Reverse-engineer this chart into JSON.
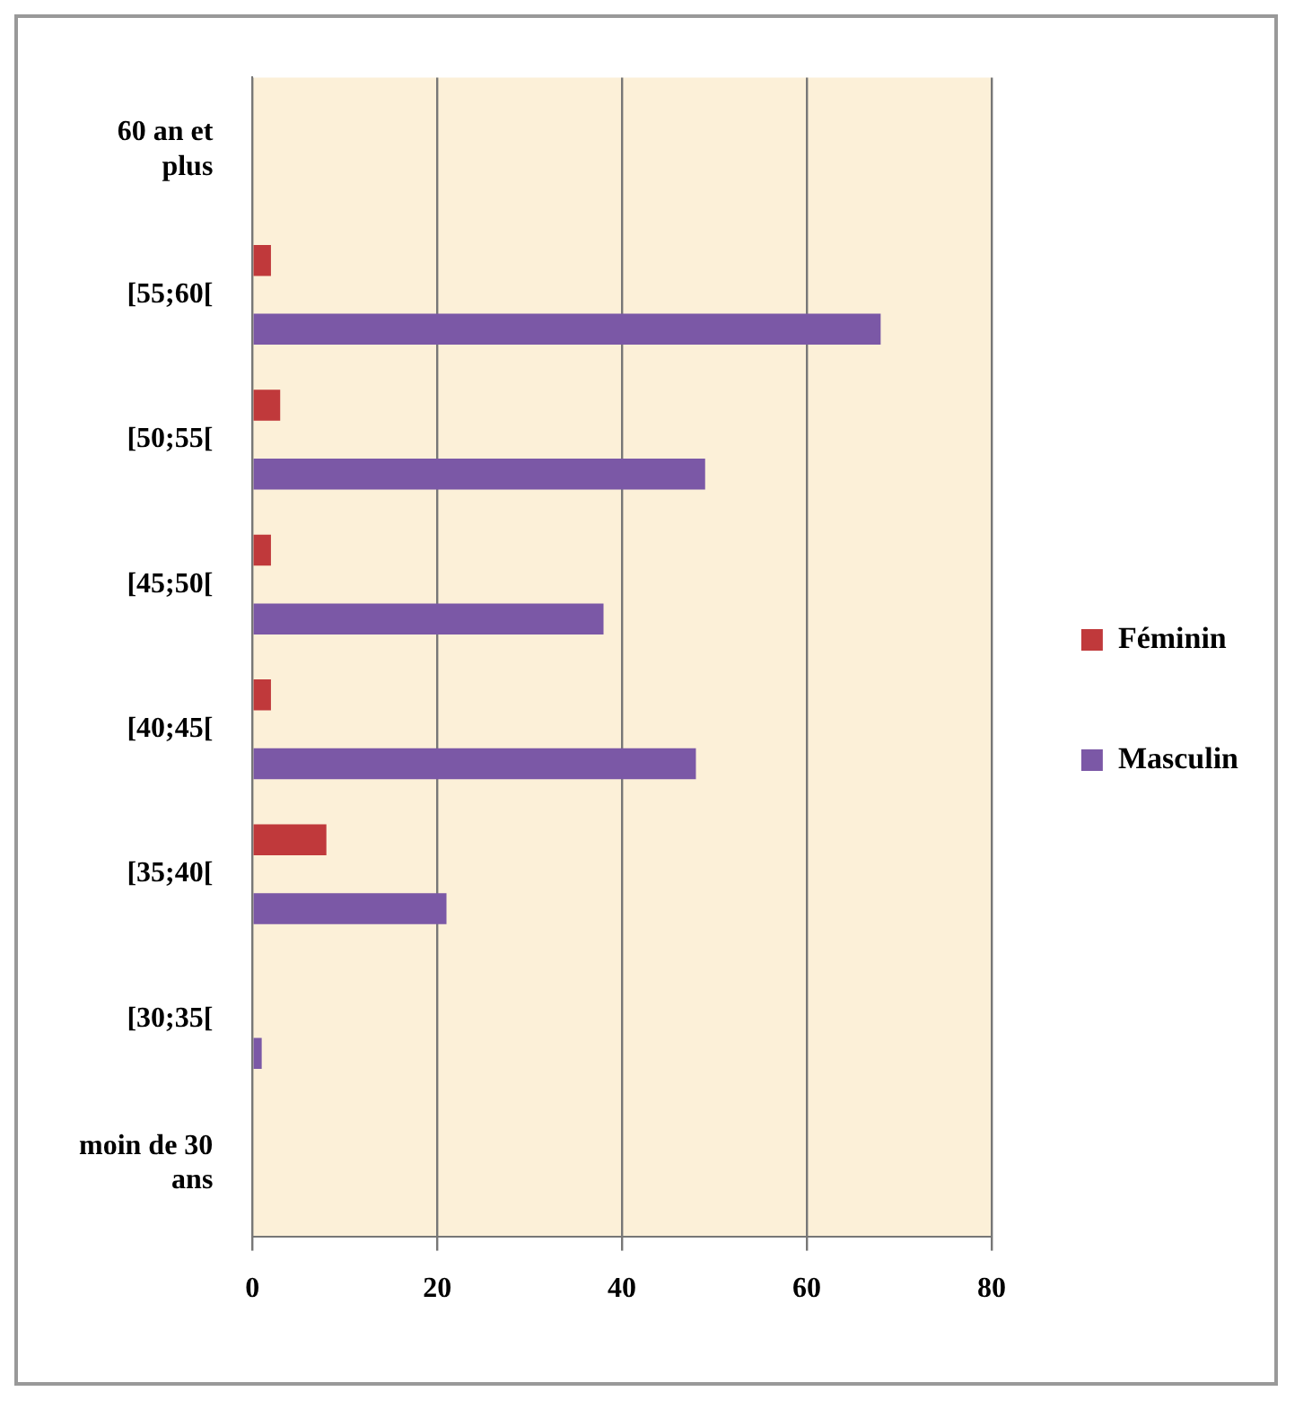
{
  "chart_data": {
    "type": "bar",
    "orientation": "horizontal",
    "categories": [
      "60 an et plus",
      "[55;60[",
      "[50;55[",
      "[45;50[",
      "[40;45[",
      "[35;40[",
      "[30;35[",
      "moin de 30 ans"
    ],
    "series": [
      {
        "name": "Féminin",
        "color": "#c0393b",
        "values": [
          0,
          2,
          3,
          2,
          2,
          8,
          0,
          0
        ]
      },
      {
        "name": "Masculin",
        "color": "#7b58a6",
        "values": [
          0,
          68,
          49,
          38,
          48,
          21,
          1,
          0
        ]
      }
    ],
    "xlim": [
      0,
      80
    ],
    "xticks": [
      0,
      20,
      40,
      60,
      80
    ],
    "grid": "x",
    "legend": "right"
  }
}
